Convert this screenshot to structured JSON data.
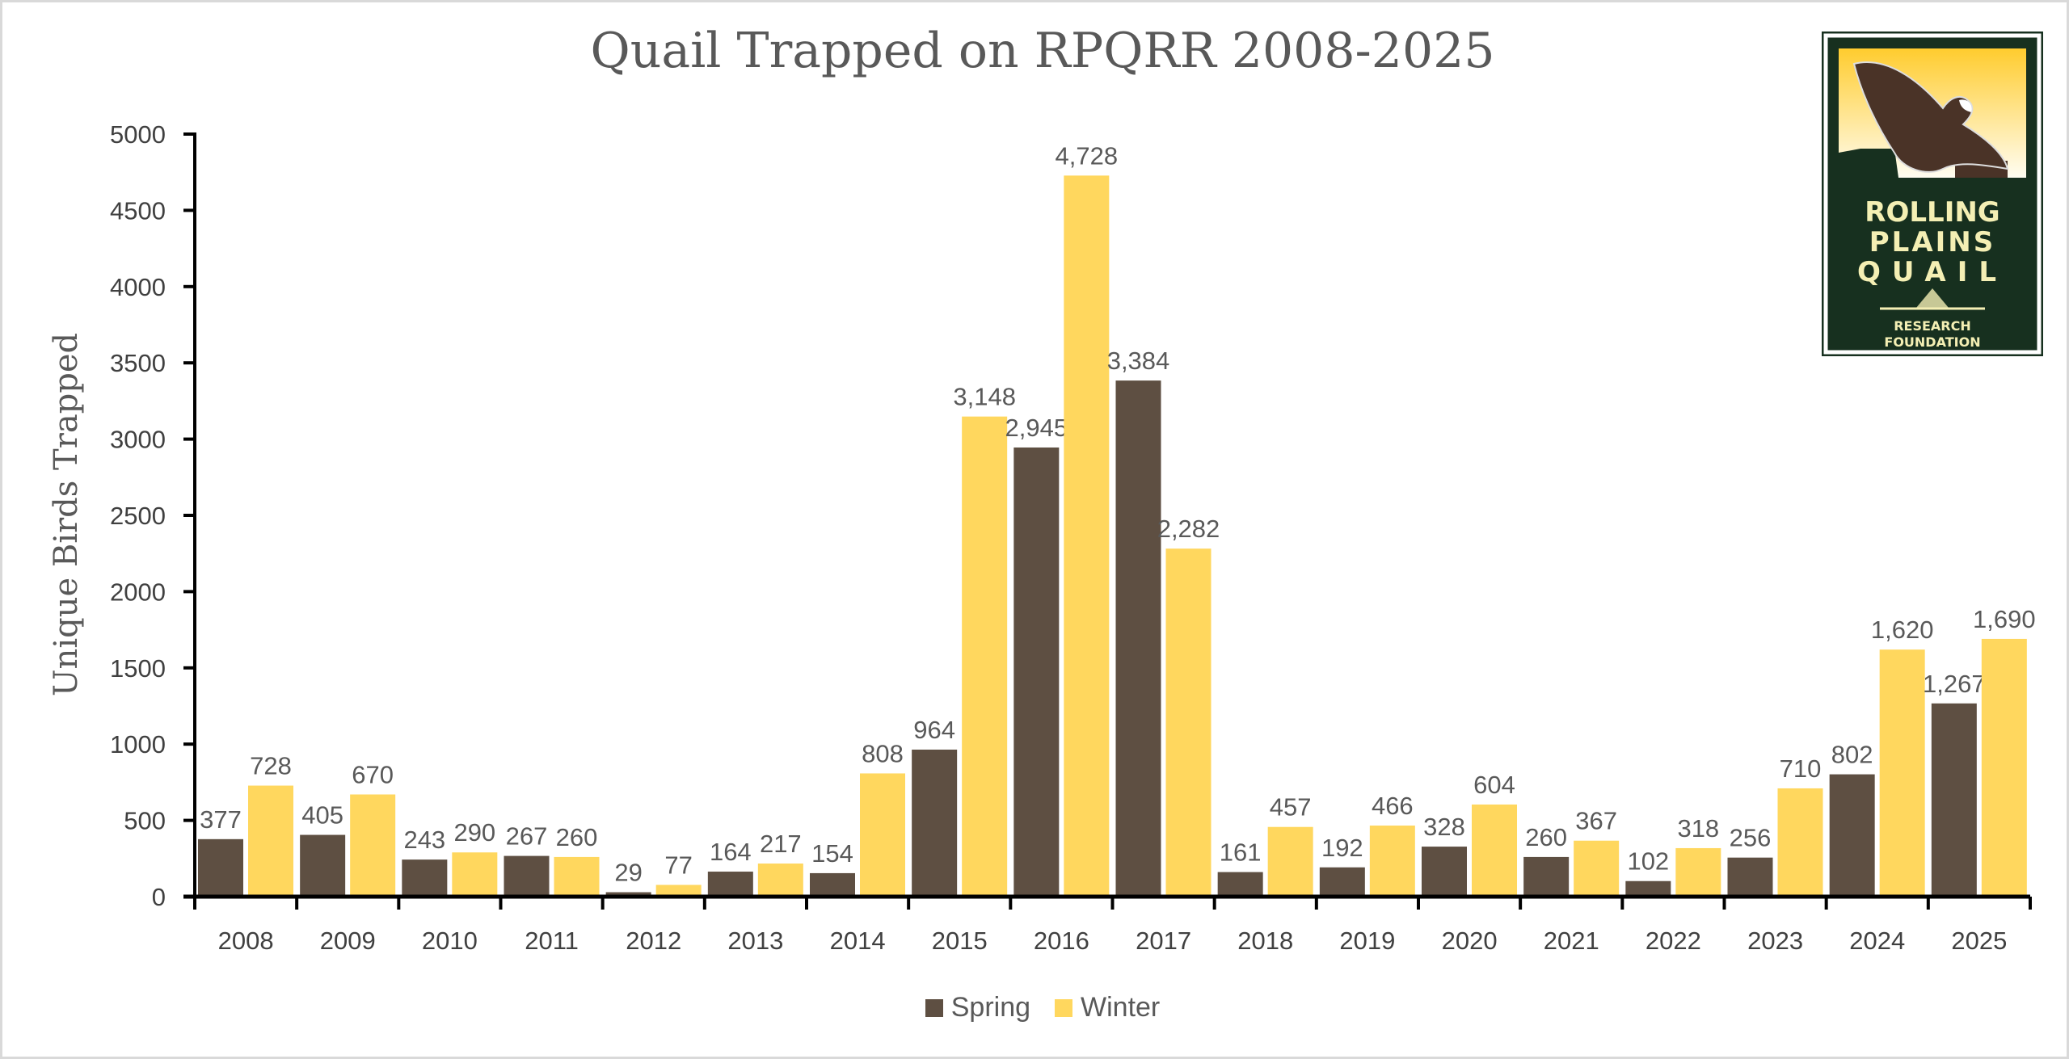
{
  "chart_data": {
    "type": "bar",
    "title": "Quail Trapped on RPQRR 2008-2025",
    "xlabel": "",
    "ylabel": "Unique Birds Trapped",
    "ylim": [
      0,
      5000
    ],
    "yticks": [
      0,
      500,
      1000,
      1500,
      2000,
      2500,
      3000,
      3500,
      4000,
      4500,
      5000
    ],
    "grid": false,
    "legend_position": "bottom",
    "categories": [
      "2008",
      "2009",
      "2010",
      "2011",
      "2012",
      "2013",
      "2014",
      "2015",
      "2016",
      "2017",
      "2018",
      "2019",
      "2020",
      "2021",
      "2022",
      "2023",
      "2024",
      "2025"
    ],
    "series": [
      {
        "name": "Spring",
        "color": "#5e4f42",
        "values": [
          377,
          405,
          243,
          267,
          29,
          164,
          154,
          964,
          2945,
          3384,
          161,
          192,
          328,
          260,
          102,
          256,
          802,
          1267
        ]
      },
      {
        "name": "Winter",
        "color": "#ffd75e",
        "values": [
          728,
          670,
          290,
          260,
          77,
          217,
          808,
          3148,
          4728,
          2282,
          457,
          466,
          604,
          367,
          318,
          710,
          1620,
          1690
        ]
      }
    ]
  },
  "logo": {
    "text": "ROLLING PLAINS QUAIL RESEARCH FOUNDATION",
    "icon": "quail-logo"
  }
}
